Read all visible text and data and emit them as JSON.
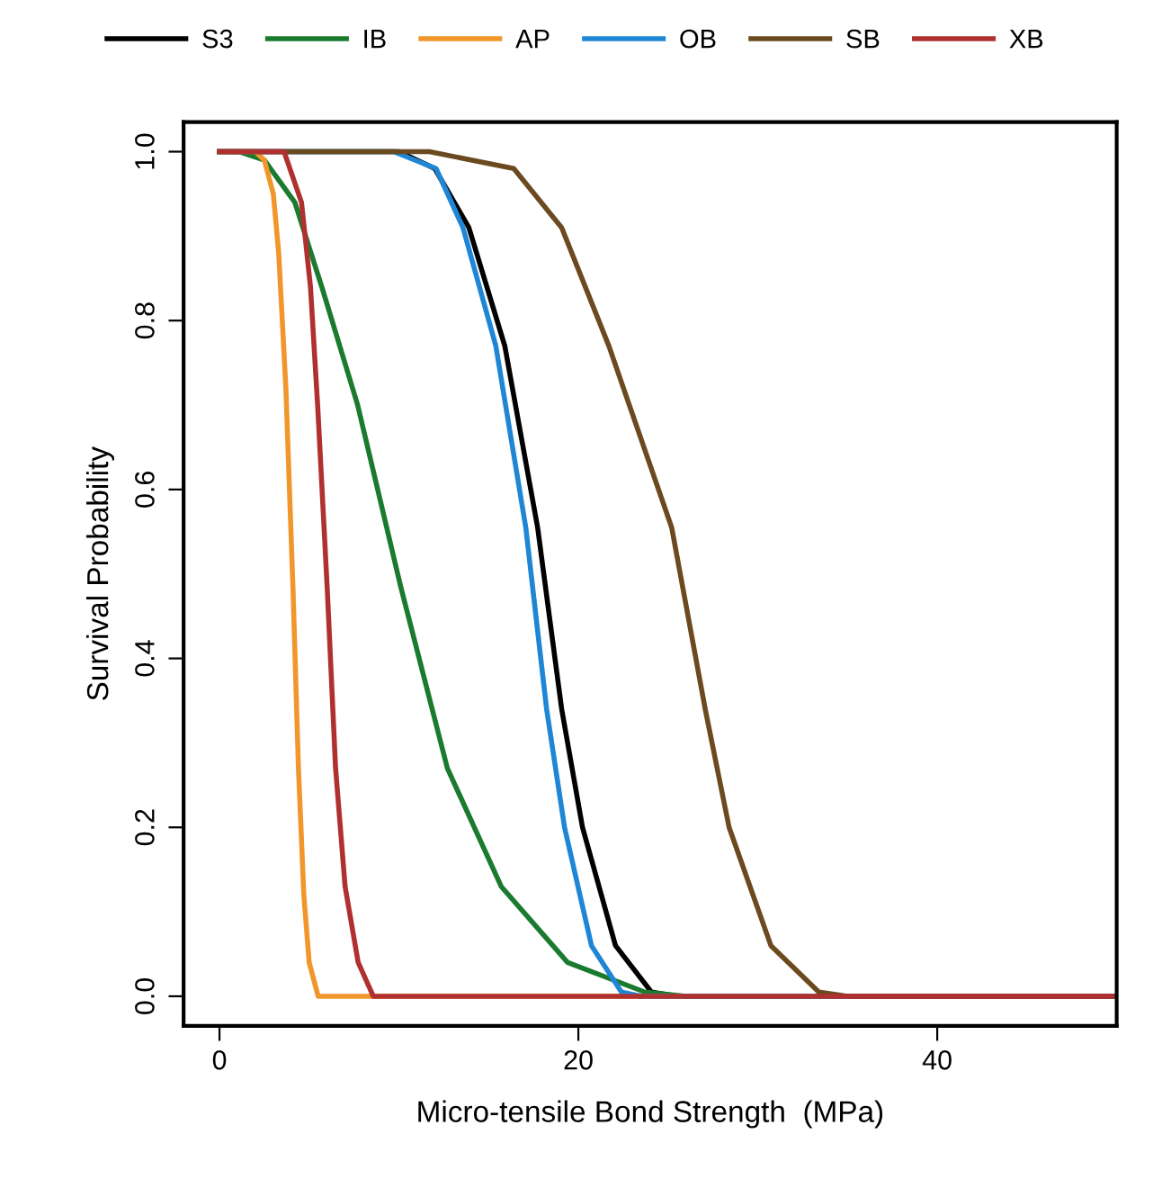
{
  "chart_data": {
    "type": "line",
    "xlabel": "Micro-tensile Bond Strength  (MPa)",
    "ylabel": "Survival Probability",
    "xlim": [
      -2,
      50
    ],
    "ylim": [
      -0.035,
      1.035
    ],
    "xticks": [
      0,
      20,
      40
    ],
    "yticks": [
      {
        "value": 0,
        "label": "0.0"
      },
      0.2,
      0.4,
      0.6,
      0.8,
      {
        "value": 1,
        "label": "1.0"
      }
    ],
    "grid": false,
    "legend": "top",
    "marker": "none",
    "line_style": "solid",
    "series": [
      {
        "name": "S3",
        "color": "#000000",
        "x": [
          0,
          10,
          12,
          13.9,
          15.9,
          17.73,
          19.07,
          20.23,
          22.07,
          24.07,
          25.5,
          50
        ],
        "values": [
          1,
          1,
          0.98,
          0.91,
          0.77,
          0.555,
          0.34,
          0.2,
          0.06,
          0.005,
          0,
          0
        ]
      },
      {
        "name": "IB",
        "color": "#1a7a2e",
        "x": [
          0,
          1.1,
          2.5,
          4.2,
          5.7,
          7.7,
          10.1,
          12.7,
          15.7,
          19.4,
          23.7,
          26,
          50
        ],
        "values": [
          1,
          1,
          0.99,
          0.94,
          0.84,
          0.7,
          0.485,
          0.27,
          0.13,
          0.04,
          0.005,
          0,
          0
        ]
      },
      {
        "name": "AP",
        "color": "#f0962a",
        "x": [
          0,
          2,
          2.5,
          3,
          3.3,
          3.7,
          4.1,
          4.4,
          4.7,
          5,
          5.5,
          50
        ],
        "values": [
          1,
          1,
          0.99,
          0.95,
          0.88,
          0.72,
          0.48,
          0.27,
          0.12,
          0.04,
          0,
          0
        ]
      },
      {
        "name": "OB",
        "color": "#1f86d6",
        "x": [
          0,
          9.7,
          12.07,
          13.57,
          15.4,
          17.07,
          18.23,
          19.23,
          20.73,
          22.4,
          23.5,
          50
        ],
        "values": [
          1,
          1,
          0.98,
          0.91,
          0.77,
          0.555,
          0.34,
          0.2,
          0.06,
          0.005,
          0,
          0
        ]
      },
      {
        "name": "SB",
        "color": "#6b4a1f",
        "x": [
          0,
          11.7,
          16.4,
          19.07,
          21.7,
          25.2,
          27.07,
          28.4,
          30.73,
          33.4,
          35,
          50
        ],
        "values": [
          1,
          1,
          0.98,
          0.91,
          0.77,
          0.555,
          0.34,
          0.2,
          0.06,
          0.005,
          0,
          0
        ]
      },
      {
        "name": "XB",
        "color": "#b03030",
        "x": [
          0,
          3.6,
          4.57,
          5.07,
          5.47,
          6,
          6.47,
          7,
          7.73,
          8.57,
          50
        ],
        "values": [
          1,
          1,
          0.94,
          0.84,
          0.7,
          0.485,
          0.27,
          0.13,
          0.04,
          0,
          0
        ]
      }
    ]
  }
}
